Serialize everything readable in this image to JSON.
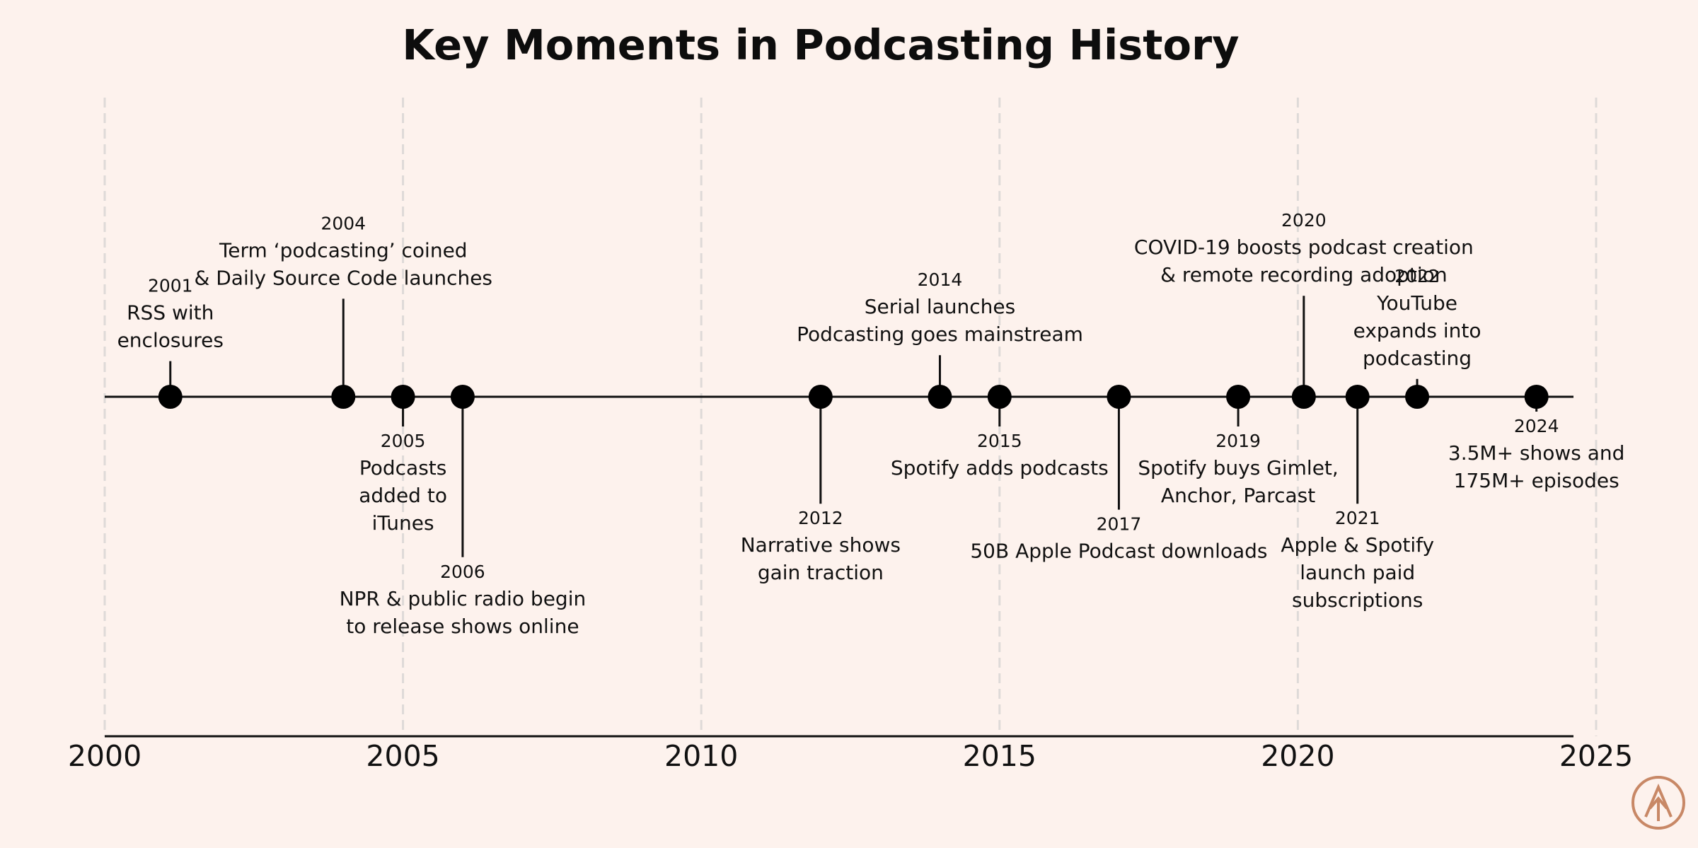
{
  "chart_data": {
    "type": "timeline",
    "title": "Key Moments in Podcasting History",
    "xlim": [
      2000,
      2025
    ],
    "ticks": [
      2000,
      2005,
      2010,
      2015,
      2020,
      2025
    ],
    "grid": true,
    "events": [
      {
        "year_value": 2001.1,
        "year": "2001",
        "lines": [
          "RSS with",
          "enclosures"
        ],
        "side": "above",
        "stem": 1.2
      },
      {
        "year_value": 2004.0,
        "year": "2004",
        "lines": [
          "Term ‘podcasting’ coined",
          "& Daily Source Code launches"
        ],
        "side": "above",
        "stem": 3.3
      },
      {
        "year_value": 2005.0,
        "year": "2005",
        "lines": [
          "Podcasts",
          "added to",
          "iTunes"
        ],
        "side": "below",
        "stem": 1.0
      },
      {
        "year_value": 2006.0,
        "year": "2006",
        "lines": [
          "NPR & public radio begin",
          "to release shows online"
        ],
        "side": "below",
        "stem": 5.4
      },
      {
        "year_value": 2012.0,
        "year": "2012",
        "lines": [
          "Narrative shows",
          "gain traction"
        ],
        "side": "below",
        "stem": 3.6
      },
      {
        "year_value": 2014.0,
        "year": "2014",
        "lines": [
          "Serial launches",
          "Podcasting goes mainstream"
        ],
        "side": "above",
        "stem": 1.4
      },
      {
        "year_value": 2015.0,
        "year": "2015",
        "lines": [
          "Spotify adds podcasts"
        ],
        "side": "below",
        "stem": 1.0
      },
      {
        "year_value": 2017.0,
        "year": "2017",
        "lines": [
          "50B Apple Podcast downloads"
        ],
        "side": "below",
        "stem": 3.8
      },
      {
        "year_value": 2019.0,
        "year": "2019",
        "lines": [
          "Spotify buys Gimlet,",
          "Anchor, Parcast"
        ],
        "side": "below",
        "stem": 1.0
      },
      {
        "year_value": 2020.1,
        "year": "2020",
        "lines": [
          "COVID-19 boosts podcast creation",
          "& remote recording adoption"
        ],
        "side": "above",
        "stem": 3.4
      },
      {
        "year_value": 2021.0,
        "year": "2021",
        "lines": [
          "Apple & Spotify",
          "launch paid",
          "subscriptions"
        ],
        "side": "below",
        "stem": 3.6
      },
      {
        "year_value": 2022.0,
        "year": "2022",
        "lines": [
          "YouTube",
          "expands into",
          "podcasting"
        ],
        "side": "above",
        "stem": 0.6
      },
      {
        "year_value": 2024.0,
        "year": "2024",
        "lines": [
          "3.5M+ shows and",
          "175M+ episodes"
        ],
        "side": "below",
        "stem": 0.5
      }
    ]
  },
  "logo": {
    "icon": "tree-logo-icon",
    "color": "#c88866"
  }
}
